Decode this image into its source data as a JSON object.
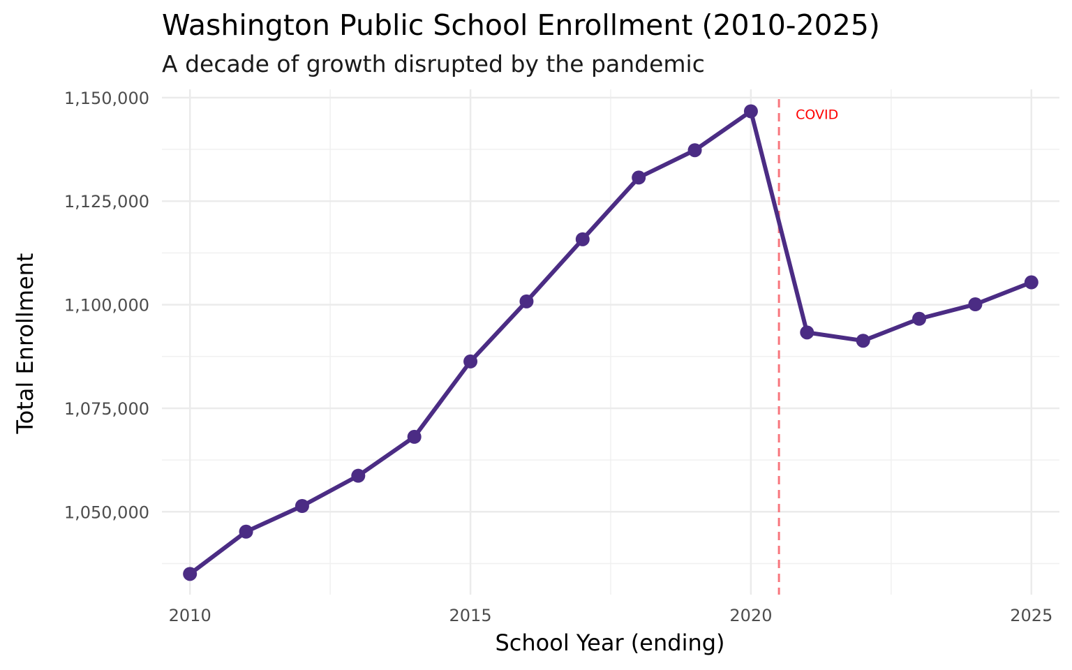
{
  "chart_data": {
    "type": "line",
    "title": "Washington Public School Enrollment (2010-2025)",
    "subtitle": "A decade of growth disrupted by the pandemic",
    "xlabel": "School Year (ending)",
    "ylabel": "Total Enrollment",
    "x": [
      2010,
      2011,
      2012,
      2013,
      2014,
      2015,
      2016,
      2017,
      2018,
      2019,
      2020,
      2021,
      2022,
      2023,
      2024,
      2025
    ],
    "series": [
      {
        "name": "Total Enrollment",
        "values": [
          1035000,
          1045200,
          1051400,
          1058700,
          1068100,
          1086300,
          1100800,
          1115800,
          1130700,
          1137300,
          1146700,
          1093300,
          1091300,
          1096600,
          1100100,
          1105400
        ]
      }
    ],
    "xlim": [
      2009.5,
      2025.5
    ],
    "ylim": [
      1030000,
      1152000
    ],
    "x_ticks": [
      2010,
      2015,
      2020,
      2025
    ],
    "x_tick_labels": [
      "2010",
      "2015",
      "2020",
      "2025"
    ],
    "y_ticks": [
      1050000,
      1075000,
      1100000,
      1125000,
      1150000
    ],
    "y_tick_labels": [
      "1,050,000",
      "1,075,000",
      "1,100,000",
      "1,125,000",
      "1,150,000"
    ],
    "grid": true,
    "annotation": {
      "x": 2020.5,
      "label": "COVID",
      "color": "#ff0000",
      "line_color": "#f8767d"
    },
    "line_color": "#4b2c84"
  }
}
